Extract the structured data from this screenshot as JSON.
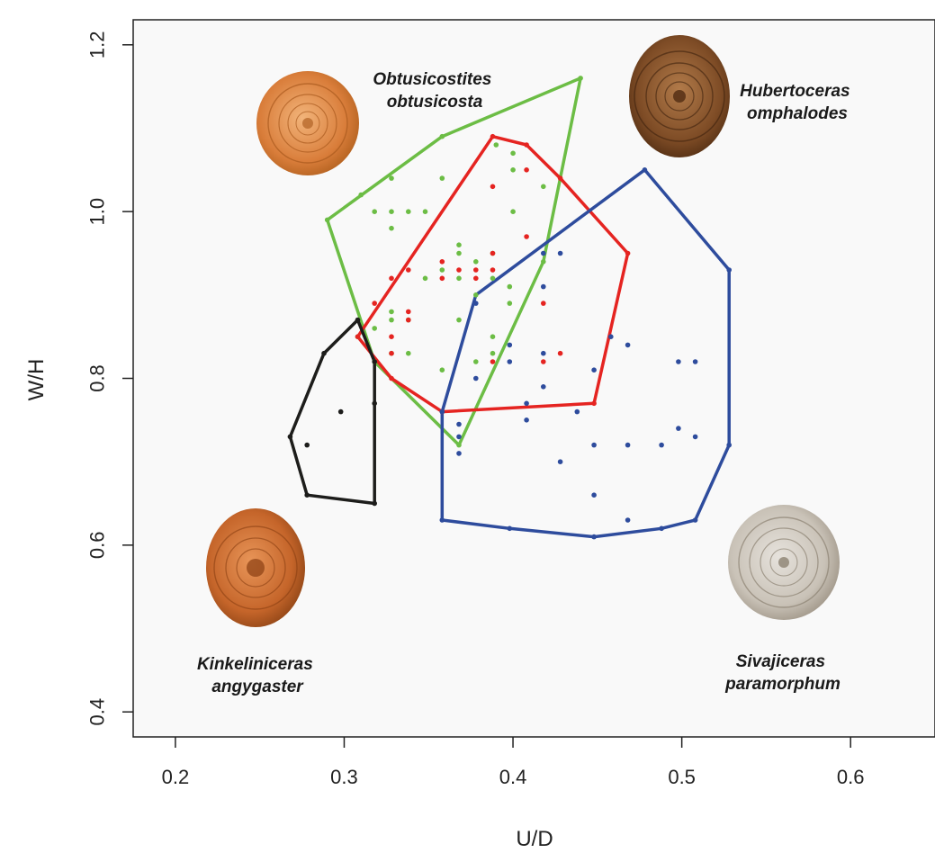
{
  "chart_data": {
    "type": "scatter",
    "xlabel": "U/D",
    "ylabel": "W/H",
    "xlim": [
      0.175,
      0.65
    ],
    "ylim": [
      0.37,
      1.23
    ],
    "xticks": [
      "0.2",
      "0.3",
      "0.4",
      "0.5",
      "0.6"
    ],
    "yticks": [
      "0.4",
      "0.6",
      "0.8",
      "1.0",
      "1.2"
    ],
    "grid": false,
    "series": [
      {
        "name": "Obtusicostites obtusicosta",
        "label_lines": [
          "Obtusicostites",
          "obtusicosta"
        ],
        "color": "#6cbd45",
        "hull": [
          [
            0.29,
            0.99
          ],
          [
            0.358,
            1.09
          ],
          [
            0.44,
            1.16
          ],
          [
            0.418,
            0.94
          ],
          [
            0.368,
            0.72
          ],
          [
            0.318,
            0.82
          ]
        ],
        "points": [
          [
            0.29,
            0.99
          ],
          [
            0.31,
            1.02
          ],
          [
            0.328,
            1.04
          ],
          [
            0.358,
            1.09
          ],
          [
            0.44,
            1.16
          ],
          [
            0.39,
            1.08
          ],
          [
            0.4,
            1.07
          ],
          [
            0.4,
            1.05
          ],
          [
            0.418,
            1.03
          ],
          [
            0.358,
            1.04
          ],
          [
            0.318,
            1.0
          ],
          [
            0.328,
            1.0
          ],
          [
            0.338,
            1.0
          ],
          [
            0.348,
            1.0
          ],
          [
            0.328,
            0.98
          ],
          [
            0.4,
            1.0
          ],
          [
            0.368,
            0.96
          ],
          [
            0.368,
            0.95
          ],
          [
            0.388,
            0.95
          ],
          [
            0.378,
            0.94
          ],
          [
            0.358,
            0.93
          ],
          [
            0.368,
            0.92
          ],
          [
            0.348,
            0.92
          ],
          [
            0.388,
            0.92
          ],
          [
            0.398,
            0.91
          ],
          [
            0.378,
            0.9
          ],
          [
            0.328,
            0.88
          ],
          [
            0.328,
            0.87
          ],
          [
            0.338,
            0.87
          ],
          [
            0.398,
            0.89
          ],
          [
            0.318,
            0.86
          ],
          [
            0.368,
            0.87
          ],
          [
            0.388,
            0.85
          ],
          [
            0.328,
            0.83
          ],
          [
            0.338,
            0.83
          ],
          [
            0.388,
            0.83
          ],
          [
            0.378,
            0.82
          ],
          [
            0.358,
            0.81
          ],
          [
            0.308,
            0.85
          ],
          [
            0.318,
            0.82
          ],
          [
            0.368,
            0.72
          ],
          [
            0.418,
            0.94
          ]
        ]
      },
      {
        "name": "Hubertoceras omphalodes",
        "label_lines": [
          "Hubertoceras",
          "omphalodes"
        ],
        "color": "#e52421",
        "hull": [
          [
            0.388,
            1.09
          ],
          [
            0.408,
            1.08
          ],
          [
            0.428,
            1.04
          ],
          [
            0.468,
            0.95
          ],
          [
            0.448,
            0.77
          ],
          [
            0.358,
            0.76
          ],
          [
            0.328,
            0.8
          ],
          [
            0.308,
            0.85
          ]
        ],
        "points": [
          [
            0.388,
            1.09
          ],
          [
            0.408,
            1.08
          ],
          [
            0.428,
            1.04
          ],
          [
            0.408,
            1.05
          ],
          [
            0.388,
            1.03
          ],
          [
            0.468,
            0.95
          ],
          [
            0.408,
            0.97
          ],
          [
            0.388,
            0.95
          ],
          [
            0.358,
            0.94
          ],
          [
            0.368,
            0.93
          ],
          [
            0.338,
            0.93
          ],
          [
            0.378,
            0.93
          ],
          [
            0.388,
            0.93
          ],
          [
            0.358,
            0.92
          ],
          [
            0.378,
            0.92
          ],
          [
            0.328,
            0.92
          ],
          [
            0.418,
            0.89
          ],
          [
            0.318,
            0.89
          ],
          [
            0.338,
            0.88
          ],
          [
            0.338,
            0.87
          ],
          [
            0.328,
            0.85
          ],
          [
            0.308,
            0.85
          ],
          [
            0.328,
            0.83
          ],
          [
            0.418,
            0.82
          ],
          [
            0.428,
            0.83
          ],
          [
            0.388,
            0.82
          ],
          [
            0.328,
            0.8
          ],
          [
            0.358,
            0.76
          ],
          [
            0.448,
            0.77
          ]
        ]
      },
      {
        "name": "Sivajiceras paramorphum",
        "label_lines": [
          "Sivajiceras",
          "paramorphum"
        ],
        "color": "#2e4c9d",
        "hull": [
          [
            0.478,
            1.05
          ],
          [
            0.528,
            0.93
          ],
          [
            0.528,
            0.72
          ],
          [
            0.508,
            0.63
          ],
          [
            0.488,
            0.62
          ],
          [
            0.448,
            0.61
          ],
          [
            0.398,
            0.62
          ],
          [
            0.358,
            0.63
          ],
          [
            0.358,
            0.76
          ],
          [
            0.378,
            0.9
          ]
        ],
        "points": [
          [
            0.478,
            1.05
          ],
          [
            0.528,
            0.93
          ],
          [
            0.418,
            0.95
          ],
          [
            0.428,
            0.95
          ],
          [
            0.418,
            0.91
          ],
          [
            0.378,
            0.89
          ],
          [
            0.458,
            0.85
          ],
          [
            0.468,
            0.84
          ],
          [
            0.398,
            0.84
          ],
          [
            0.418,
            0.83
          ],
          [
            0.398,
            0.82
          ],
          [
            0.498,
            0.82
          ],
          [
            0.508,
            0.82
          ],
          [
            0.448,
            0.81
          ],
          [
            0.378,
            0.8
          ],
          [
            0.418,
            0.79
          ],
          [
            0.408,
            0.77
          ],
          [
            0.438,
            0.76
          ],
          [
            0.408,
            0.75
          ],
          [
            0.368,
            0.745
          ],
          [
            0.498,
            0.74
          ],
          [
            0.508,
            0.73
          ],
          [
            0.368,
            0.73
          ],
          [
            0.448,
            0.72
          ],
          [
            0.468,
            0.72
          ],
          [
            0.488,
            0.72
          ],
          [
            0.528,
            0.72
          ],
          [
            0.368,
            0.71
          ],
          [
            0.428,
            0.7
          ],
          [
            0.448,
            0.66
          ],
          [
            0.468,
            0.63
          ],
          [
            0.508,
            0.63
          ],
          [
            0.358,
            0.63
          ],
          [
            0.488,
            0.62
          ],
          [
            0.398,
            0.62
          ],
          [
            0.448,
            0.61
          ],
          [
            0.358,
            0.76
          ]
        ]
      },
      {
        "name": "Kinkeliniceras angygaster",
        "label_lines": [
          "Kinkeliniceras",
          "angygaster"
        ],
        "color": "#1d1d1b",
        "hull": [
          [
            0.308,
            0.87
          ],
          [
            0.318,
            0.82
          ],
          [
            0.318,
            0.65
          ],
          [
            0.278,
            0.66
          ],
          [
            0.268,
            0.73
          ],
          [
            0.288,
            0.83
          ]
        ],
        "points": [
          [
            0.308,
            0.87
          ],
          [
            0.318,
            0.82
          ],
          [
            0.288,
            0.83
          ],
          [
            0.318,
            0.77
          ],
          [
            0.298,
            0.76
          ],
          [
            0.268,
            0.73
          ],
          [
            0.278,
            0.72
          ],
          [
            0.278,
            0.66
          ],
          [
            0.318,
            0.65
          ]
        ]
      }
    ]
  }
}
